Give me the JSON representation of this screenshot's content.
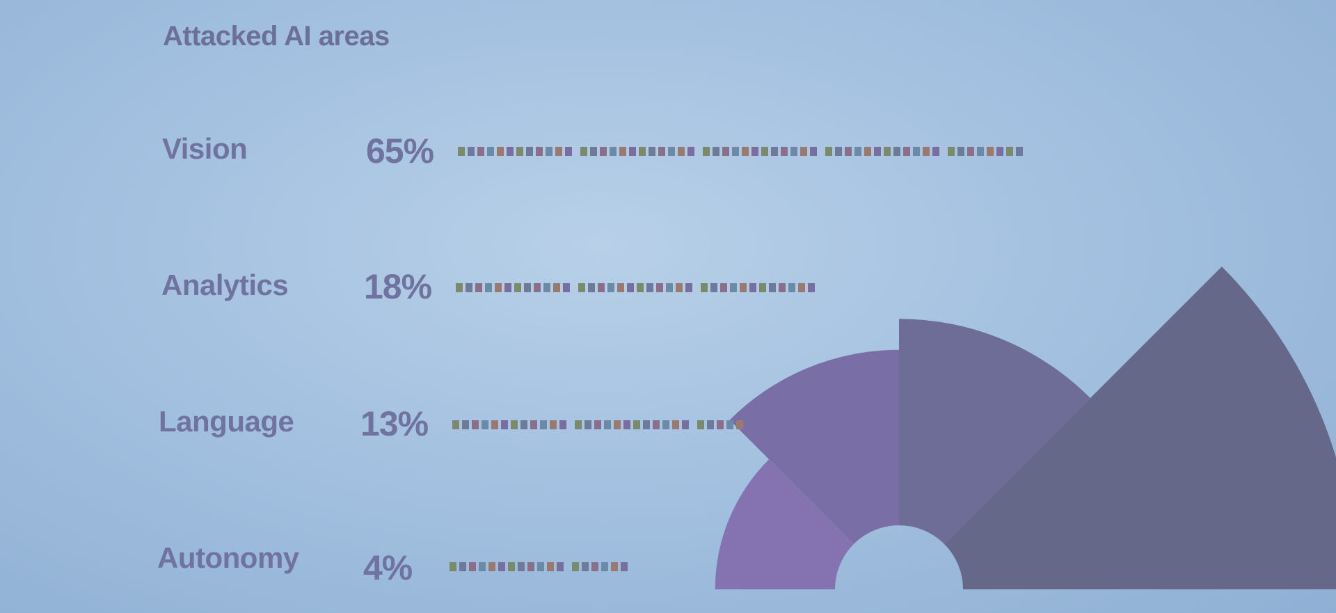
{
  "chart_data": {
    "type": "pie",
    "variant": "polar-area-half",
    "title": "Attacked AI areas",
    "categories": [
      "Vision",
      "Analytics",
      "Language",
      "Autonomy"
    ],
    "values": [
      65,
      18,
      13,
      4
    ],
    "value_labels": [
      "65%",
      "18%",
      "13%",
      "4%"
    ],
    "legend": "left",
    "grid": false,
    "colors": [
      "#66688a",
      "#6e6d98",
      "#7a6ea6",
      "#8572b0"
    ]
  }
}
